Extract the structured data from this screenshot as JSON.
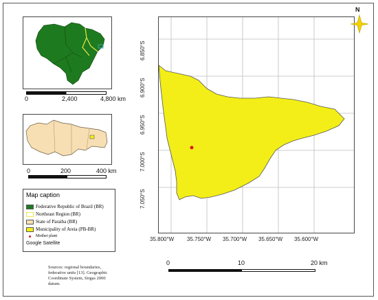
{
  "brazil_inset": {
    "scale_labels": [
      "0",
      "2,400",
      "4,800 km"
    ]
  },
  "paraiba_inset": {
    "scale_labels": [
      "0",
      "200",
      "400 km"
    ]
  },
  "legend": {
    "title": "Map caption",
    "items": [
      {
        "label": "Federative Republic of Brazil (BR)",
        "color": "#1e7a1e"
      },
      {
        "label": "Northeast Region (BR)",
        "color": "#ffffff"
      },
      {
        "label": "State of Paraiba (BR)",
        "color": "#f7dfb3"
      },
      {
        "label": "Municipality of Areia (PB-BR)",
        "color": "#f3ee17"
      },
      {
        "label": "Mother plant",
        "color": "#e0141e"
      }
    ],
    "basemap": "Google Satellite"
  },
  "sources": "Sources: regional boundaries, federative units [13]. Geographic Coordinate System, Sirgas 2000 datum.",
  "main_map": {
    "lat_labels": [
      "6.850°S",
      "6.900°S",
      "6.950°S",
      "7.000°S",
      "7.050°S"
    ],
    "lon_labels": [
      "35.800°W",
      "35.750°W",
      "35.700°W",
      "35.650°W",
      "35.600°W"
    ],
    "scale_labels": [
      "0",
      "10",
      "20 km"
    ]
  },
  "north_label": "N",
  "colors": {
    "brazil": "#1e7a1e",
    "northeast_outline": "#e8e84a",
    "paraiba": "#f7dfb3",
    "areia": "#f3ee17",
    "point": "#e0141e"
  }
}
